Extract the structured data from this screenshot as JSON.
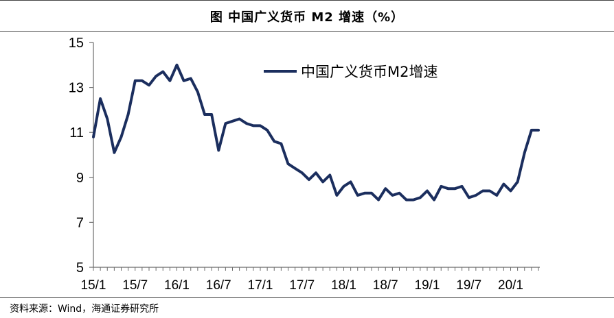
{
  "figure": {
    "title": "图  中国广义货币 M2 增速（%）",
    "source": "资料来源：Wind，海通证券研究所"
  },
  "chart_data": {
    "type": "line",
    "title": "",
    "xlabel": "",
    "ylabel": "",
    "ylim": [
      5,
      15
    ],
    "yticks": [
      5,
      7,
      9,
      11,
      13,
      15
    ],
    "xtick_labels": [
      "15/1",
      "15/7",
      "16/1",
      "16/7",
      "17/1",
      "17/7",
      "18/1",
      "18/7",
      "19/1",
      "19/7",
      "20/1"
    ],
    "grid": false,
    "legend_position": "top-right",
    "colors": {
      "series": "#1b2e5e",
      "axis": "#6b6b6b"
    },
    "x": [
      "15/1",
      "15/2",
      "15/3",
      "15/4",
      "15/5",
      "15/6",
      "15/7",
      "15/8",
      "15/9",
      "15/10",
      "15/11",
      "15/12",
      "16/1",
      "16/2",
      "16/3",
      "16/4",
      "16/5",
      "16/6",
      "16/7",
      "16/8",
      "16/9",
      "16/10",
      "16/11",
      "16/12",
      "17/1",
      "17/2",
      "17/3",
      "17/4",
      "17/5",
      "17/6",
      "17/7",
      "17/8",
      "17/9",
      "17/10",
      "17/11",
      "17/12",
      "18/1",
      "18/2",
      "18/3",
      "18/4",
      "18/5",
      "18/6",
      "18/7",
      "18/8",
      "18/9",
      "18/10",
      "18/11",
      "18/12",
      "19/1",
      "19/2",
      "19/3",
      "19/4",
      "19/5",
      "19/6",
      "19/7",
      "19/8",
      "19/9",
      "19/10",
      "19/11",
      "19/12",
      "20/1",
      "20/2",
      "20/3",
      "20/4",
      "20/5"
    ],
    "series": [
      {
        "name": "中国广义货币M2增速",
        "values": [
          10.8,
          12.5,
          11.6,
          10.1,
          10.8,
          11.8,
          13.3,
          13.3,
          13.1,
          13.5,
          13.7,
          13.3,
          14.0,
          13.3,
          13.4,
          12.8,
          11.8,
          11.8,
          10.2,
          11.4,
          11.5,
          11.6,
          11.4,
          11.3,
          11.3,
          11.1,
          10.6,
          10.5,
          9.6,
          9.4,
          9.2,
          8.9,
          9.2,
          8.8,
          9.1,
          8.2,
          8.6,
          8.8,
          8.2,
          8.3,
          8.3,
          8.0,
          8.5,
          8.2,
          8.3,
          8.0,
          8.0,
          8.1,
          8.4,
          8.0,
          8.6,
          8.5,
          8.5,
          8.6,
          8.1,
          8.2,
          8.4,
          8.4,
          8.2,
          8.7,
          8.4,
          8.8,
          10.1,
          11.1,
          11.1
        ]
      }
    ]
  }
}
